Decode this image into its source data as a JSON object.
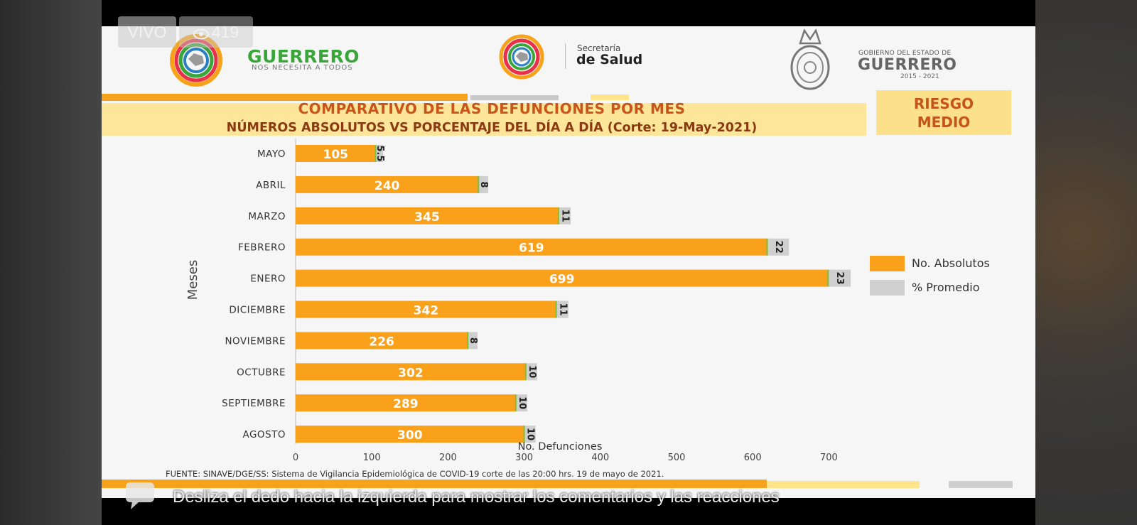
{
  "overlay": {
    "live_label": "VIVO",
    "viewers": "419",
    "swipe_hint": "Desliza el dedo hacia la izquierda para mostrar los comentarios y las reacciones"
  },
  "header": {
    "guerrero_logo": {
      "name": "GUERRERO",
      "tagline": "NOS NECESITA A TODOS"
    },
    "salud_logo": {
      "line1": "Secretaría",
      "line2": "de Salud"
    },
    "gobierno_logo": {
      "line1": "GOBIERNO DEL ESTADO DE",
      "line2": "GUERRERO",
      "line3": "2015 - 2021"
    }
  },
  "titles": {
    "line1": "COMPARATIVO DE LAS DEFUNCIONES POR MES",
    "line2": "NÚMEROS ABSOLUTOS VS PORCENTAJE DEL DÍA A DÍA   (Corte: 19-May-2021)"
  },
  "risk_badge": {
    "line1": "RIESGO",
    "line2": "MEDIO"
  },
  "source_note": "FUENTE: SINAVE/DGE/SS: Sistema de Vigilancia Epidemiológica de COVID-19 corte de las 20:00 hrs. 19 de mayo  de 2021.",
  "colors": {
    "absolutos": "#f9a11b",
    "promedio": "#cfcfcf",
    "label": "#ffffff",
    "axis_text": "#333333"
  },
  "chart_data": {
    "type": "bar",
    "orientation": "horizontal",
    "stacked": true,
    "categories": [
      "MAYO",
      "ABRIL",
      "MARZO",
      "FEBRERO",
      "ENERO",
      "DICIEMBRE",
      "NOVIEMBRE",
      "OCTUBRE",
      "SEPTIEMBRE",
      "AGOSTO"
    ],
    "series": [
      {
        "name": "No. Absolutos",
        "values": [
          105,
          240,
          345,
          619,
          699,
          342,
          226,
          302,
          289,
          300
        ]
      },
      {
        "name": "% Promedio",
        "values": [
          5.5,
          8,
          11,
          22,
          23,
          11,
          8,
          10,
          10,
          10
        ]
      }
    ],
    "xlabel": "No. Defunciones",
    "ylabel": "Meses",
    "xlim": [
      0,
      700
    ],
    "xticks": [
      0,
      100,
      200,
      300,
      400,
      500,
      600,
      700
    ],
    "legend_position": "right",
    "grid": false
  }
}
